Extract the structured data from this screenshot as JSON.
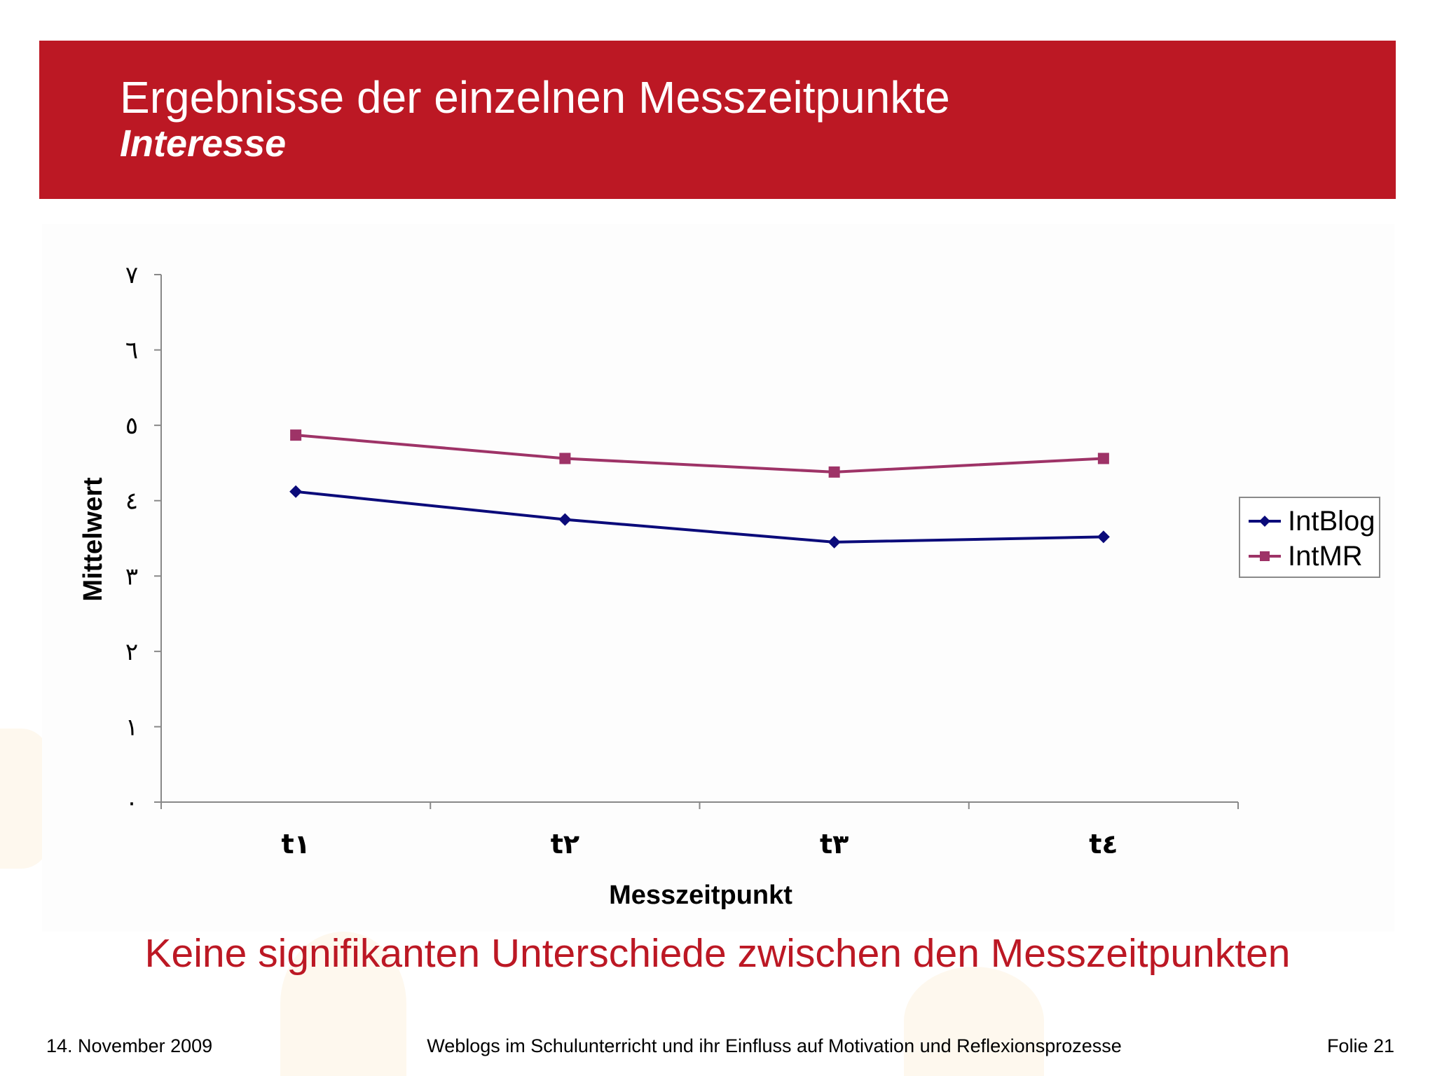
{
  "slide": {
    "title": "Ergebnisse der einzelnen Messzeitpunkte",
    "subtitle": "Interesse",
    "conclusion": "Keine signifikanten Unterschiede zwischen den Messzeitpunkten",
    "footer": {
      "date": "14. November 2009",
      "center": "Weblogs im Schulunterricht und ihr Einfluss auf Motivation und Reflexionsprozesse",
      "page": "Folie 21"
    }
  },
  "colors": {
    "header": "#bc1824",
    "accent_text": "#bc1824",
    "series_intblog": "#0b0b7a",
    "series_intmr": "#9e3367"
  },
  "chart_data": {
    "type": "line",
    "categories": [
      "t١",
      "t٢",
      "t٣",
      "t٤"
    ],
    "series": [
      {
        "name": "IntBlog",
        "values": [
          4.12,
          3.75,
          3.45,
          3.52
        ],
        "color": "#0b0b7a",
        "marker": "diamond"
      },
      {
        "name": "IntMR",
        "values": [
          4.87,
          4.56,
          4.38,
          4.56
        ],
        "color": "#9e3367",
        "marker": "square"
      }
    ],
    "xlabel": "Messzeitpunkt",
    "ylabel": "Mittelwert",
    "ylim": [
      0,
      7
    ],
    "yticks": [
      0,
      1,
      2,
      3,
      4,
      5,
      6,
      7
    ],
    "ytick_labels": [
      "٠",
      "١",
      "٢",
      "٣",
      "٤",
      "٥",
      "٦",
      "٧"
    ],
    "grid": false,
    "legend": "right"
  }
}
